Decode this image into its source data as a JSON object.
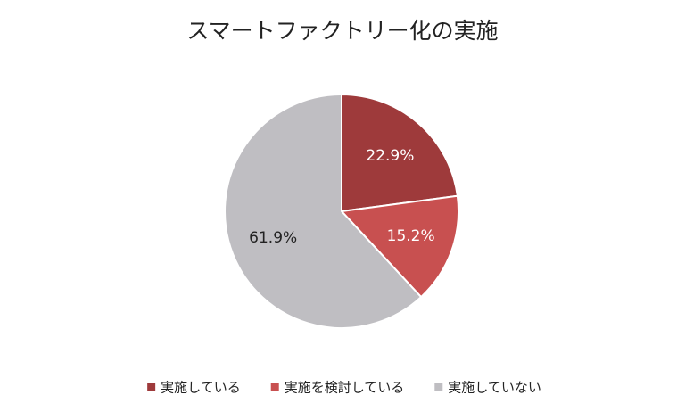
{
  "chart_data": {
    "type": "pie",
    "title": "スマートファクトリー化の実施",
    "categories": [
      "実施している",
      "実施を検討している",
      "実施していない"
    ],
    "values": [
      22.9,
      15.2,
      61.9
    ],
    "value_labels": [
      "22.9%",
      "15.2%",
      "61.9%"
    ],
    "colors": [
      "#9e3a3b",
      "#c85050",
      "#bfbec2"
    ],
    "legend": "bottom"
  }
}
